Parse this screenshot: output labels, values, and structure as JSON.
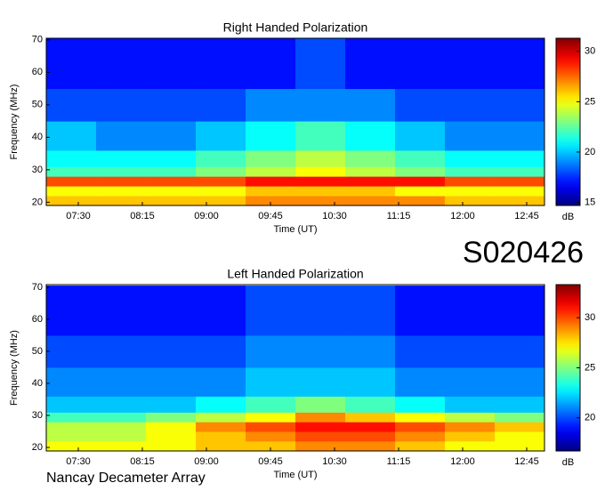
{
  "header": {
    "id": "S020426",
    "footer": "Nancay Decameter Array"
  },
  "chart_data": [
    {
      "type": "heatmap",
      "title": "Right Handed Polarization",
      "x_label": "Time (UT)",
      "y_label": "Frequency (MHz)",
      "colorbar_label": "dB",
      "colormap": "jet",
      "time_bins": [
        427.5,
        462.5,
        497.5,
        532.5,
        567.5,
        602.5,
        637.5,
        672.5,
        707.5,
        742.5,
        777.5
      ],
      "freq_bins": [
        19,
        22,
        25,
        28,
        31,
        36,
        45,
        55,
        70.5
      ],
      "z": [
        [
          26,
          26,
          26,
          26,
          27,
          27,
          27,
          27,
          26,
          26
        ],
        [
          25,
          25,
          25,
          25,
          26,
          26,
          26,
          25,
          25,
          25
        ],
        [
          28,
          28,
          28,
          28,
          29,
          29,
          29,
          29,
          28,
          28
        ],
        [
          22,
          22,
          22,
          23,
          24,
          25,
          24,
          23,
          22,
          22
        ],
        [
          21,
          21,
          21,
          22,
          23,
          24,
          23,
          22,
          21,
          21
        ],
        [
          20,
          19,
          19,
          20,
          21,
          22,
          21,
          20,
          19,
          19
        ],
        [
          18,
          18,
          18,
          18,
          19,
          19,
          19,
          18,
          18,
          18
        ],
        [
          17,
          17,
          17,
          17,
          17,
          18,
          17,
          17,
          17,
          17
        ]
      ],
      "xlim": [
        427.5,
        777.5
      ],
      "ylim": [
        19,
        70.5
      ],
      "clim": [
        14.7,
        31.3
      ],
      "xticks": [
        {
          "value": 450,
          "label": "07:30"
        },
        {
          "value": 495,
          "label": "08:15"
        },
        {
          "value": 540,
          "label": "09:00"
        },
        {
          "value": 585,
          "label": "09:45"
        },
        {
          "value": 630,
          "label": "10:30"
        },
        {
          "value": 675,
          "label": "11:15"
        },
        {
          "value": 720,
          "label": "12:00"
        },
        {
          "value": 765,
          "label": "12:45"
        }
      ],
      "yticks": [
        20,
        30,
        40,
        50,
        60,
        70
      ],
      "cticks": [
        15,
        20,
        25,
        30
      ]
    },
    {
      "type": "heatmap",
      "title": "Left Handed Polarization",
      "x_label": "Time (UT)",
      "y_label": "Frequency (MHz)",
      "colorbar_label": "dB",
      "colormap": "jet",
      "time_bins": [
        427.5,
        462.5,
        497.5,
        532.5,
        567.5,
        602.5,
        637.5,
        672.5,
        707.5,
        742.5,
        777.5
      ],
      "freq_bins": [
        19,
        22,
        25,
        28,
        31,
        36,
        45,
        55,
        70.5
      ],
      "z": [
        [
          27,
          27,
          27,
          28,
          28,
          29,
          29,
          28,
          27,
          27
        ],
        [
          26,
          26,
          27,
          28,
          29,
          30,
          30,
          29,
          28,
          27
        ],
        [
          26,
          26,
          27,
          29,
          30,
          31,
          31,
          30,
          29,
          28
        ],
        [
          24,
          24,
          25,
          26,
          27,
          29,
          28,
          27,
          26,
          25
        ],
        [
          22,
          22,
          22,
          23,
          24,
          25,
          24,
          23,
          22,
          22
        ],
        [
          21,
          21,
          21,
          21,
          22,
          22,
          22,
          21,
          21,
          21
        ],
        [
          20,
          20,
          20,
          20,
          21,
          21,
          21,
          20,
          20,
          20
        ],
        [
          19,
          19,
          19,
          19,
          20,
          20,
          20,
          19,
          19,
          19
        ]
      ],
      "xlim": [
        427.5,
        777.5
      ],
      "ylim": [
        18.9,
        70.8
      ],
      "clim": [
        16.7,
        33.3
      ],
      "xticks": [
        {
          "value": 450,
          "label": "07:30"
        },
        {
          "value": 495,
          "label": "08:15"
        },
        {
          "value": 540,
          "label": "09:00"
        },
        {
          "value": 585,
          "label": "09:45"
        },
        {
          "value": 630,
          "label": "10:30"
        },
        {
          "value": 675,
          "label": "11:15"
        },
        {
          "value": 720,
          "label": "12:00"
        },
        {
          "value": 765,
          "label": "12:45"
        }
      ],
      "yticks": [
        20,
        30,
        40,
        50,
        60,
        70
      ],
      "cticks": [
        20,
        25,
        30
      ]
    }
  ]
}
